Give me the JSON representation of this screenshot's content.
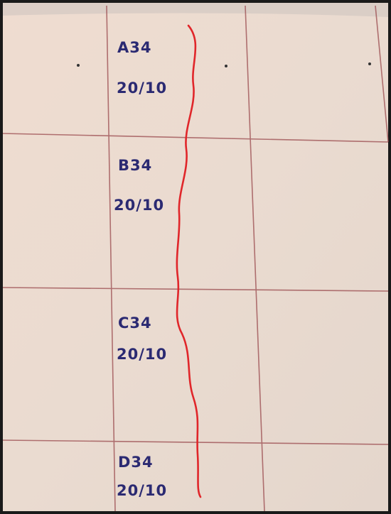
{
  "entries": [
    {
      "code": "A34",
      "date": "20/10"
    },
    {
      "code": "B34",
      "date": "20/10"
    },
    {
      "code": "C34",
      "date": "20/10"
    },
    {
      "code": "D34",
      "date": "20/10"
    }
  ]
}
